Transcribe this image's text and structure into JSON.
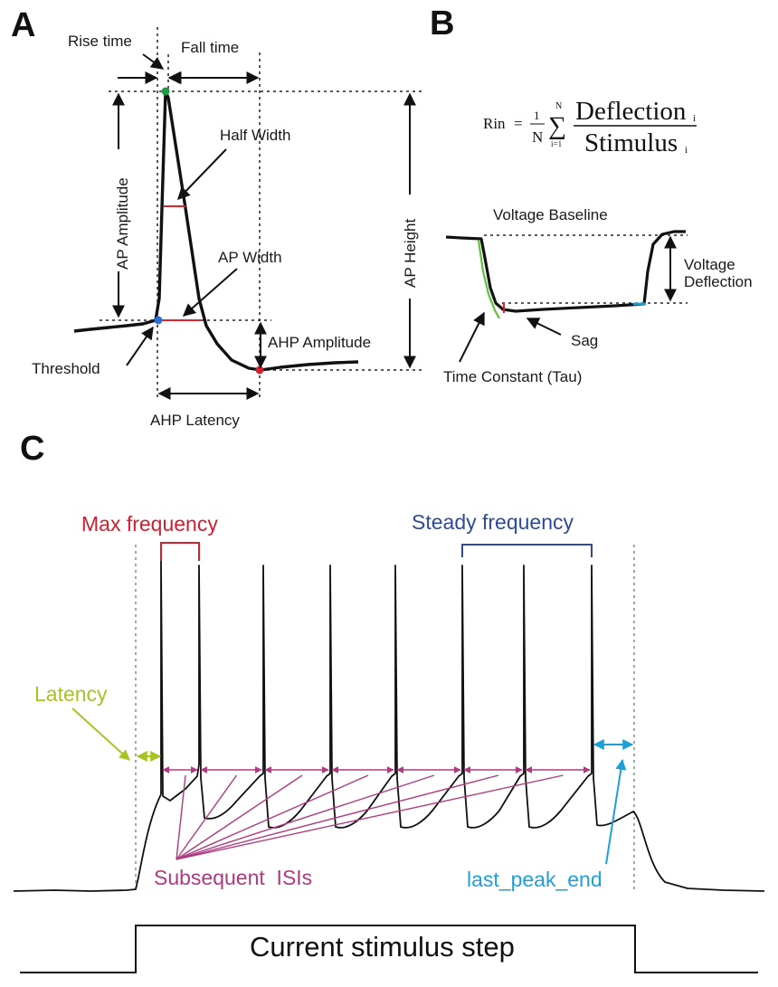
{
  "panels": {
    "A": {
      "letter": "A",
      "rise_time": "Rise time",
      "fall_time": "Fall time",
      "half_width": "Half Width",
      "ap_amplitude": "AP Amplitude",
      "ap_width": "AP Width",
      "ap_height": "AP Height",
      "ahp_amplitude": "AHP Amplitude",
      "threshold": "Threshold",
      "ahp_latency": "AHP Latency"
    },
    "B": {
      "letter": "B",
      "formula": {
        "lhs": "Rin",
        "eq": "=",
        "frac_num": "1",
        "frac_den": "N",
        "sum_top": "N",
        "sum_symbol": "∑",
        "sum_bottom": "i=1",
        "numerator": "Deflection",
        "numerator_sub": "i",
        "denominator": "Stimulus",
        "denominator_sub": "i"
      },
      "voltage_baseline": "Voltage Baseline",
      "voltage_deflection_1": "Voltage",
      "voltage_deflection_2": "Deflection",
      "sag": "Sag",
      "time_constant": "Time Constant (Tau)"
    },
    "C": {
      "letter": "C",
      "max_frequency": "Max frequency",
      "steady_frequency": "Steady frequency",
      "latency": "Latency",
      "subsequent_isis": "Subsequent  ISIs",
      "last_peak_end": "last_peak_end",
      "current_stimulus_step": "Current stimulus step"
    }
  },
  "colors": {
    "trace": "#111111",
    "max_frequency": "#d0202f",
    "steady_frequency": "#2f4a9a",
    "latency": "#a8c423",
    "isi": "#b03a80",
    "last_peak_end": "#1f9fd8",
    "threshold_dot": "#2a6fd6",
    "peak_dot": "#1f9a4a",
    "ahp_dot": "#d0202f",
    "half_width": "#e0202a",
    "tau_fit": "#5cc23a"
  }
}
